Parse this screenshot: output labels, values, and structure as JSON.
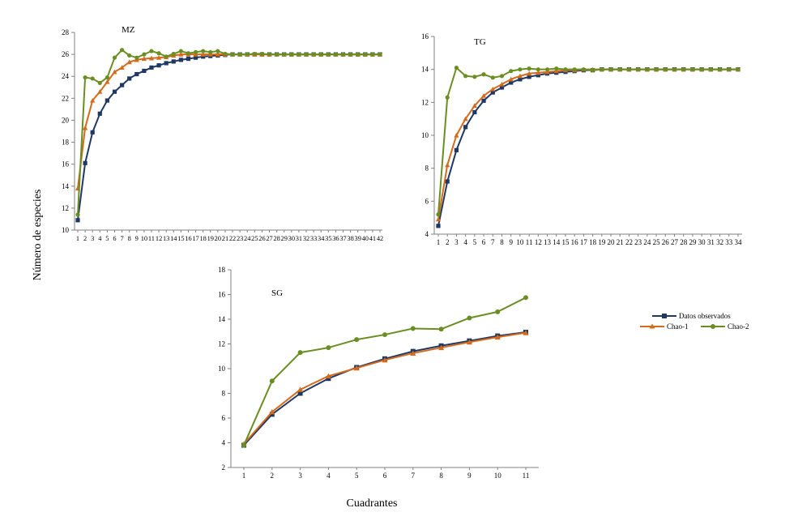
{
  "ylabel": "Número de especies",
  "xlabel": "Cuadrantes",
  "legend": [
    {
      "name": "Datos observados",
      "color": "#1f3864",
      "marker": "square"
    },
    {
      "name": "Chao-1",
      "color": "#d46a1c",
      "marker": "triangle"
    },
    {
      "name": "Chao-2",
      "color": "#6b8e23",
      "marker": "circle"
    }
  ],
  "chart_data": [
    {
      "type": "line",
      "title": "MZ",
      "ylim": [
        10,
        28
      ],
      "yticks": [
        10,
        12,
        14,
        16,
        18,
        20,
        22,
        24,
        26,
        28
      ],
      "x": [
        1,
        2,
        3,
        4,
        5,
        6,
        7,
        8,
        9,
        10,
        11,
        12,
        13,
        14,
        15,
        16,
        17,
        18,
        19,
        20,
        21,
        22,
        23,
        24,
        25,
        26,
        27,
        28,
        29,
        30,
        31,
        32,
        33,
        34,
        35,
        36,
        37,
        38,
        39,
        40,
        41,
        42
      ],
      "series": [
        {
          "name": "Datos observados",
          "values": [
            10.9,
            16.1,
            18.9,
            20.6,
            21.8,
            22.6,
            23.2,
            23.8,
            24.2,
            24.5,
            24.8,
            25.0,
            25.2,
            25.35,
            25.5,
            25.6,
            25.7,
            25.8,
            25.85,
            25.9,
            25.95,
            26,
            26,
            26,
            26,
            26,
            26,
            26,
            26,
            26,
            26,
            26,
            26,
            26,
            26,
            26,
            26,
            26,
            26,
            26,
            26,
            26
          ]
        },
        {
          "name": "Chao-1",
          "values": [
            13.8,
            19.3,
            21.8,
            22.6,
            23.5,
            24.4,
            24.8,
            25.3,
            25.5,
            25.6,
            25.65,
            25.7,
            25.75,
            25.9,
            26,
            26,
            26,
            26,
            26,
            26,
            26,
            26,
            26,
            26,
            26,
            26,
            26,
            26,
            26,
            26,
            26,
            26,
            26,
            26,
            26,
            26,
            26,
            26,
            26,
            26,
            26,
            26
          ]
        },
        {
          "name": "Chao-2",
          "values": [
            11.4,
            23.9,
            23.8,
            23.4,
            23.9,
            25.7,
            26.4,
            25.9,
            25.7,
            26.0,
            26.3,
            26.1,
            25.8,
            26.05,
            26.3,
            26.1,
            26.2,
            26.3,
            26.2,
            26.3,
            26.05,
            26.0,
            26.0,
            26.0,
            26.05,
            26.05,
            26,
            26,
            26,
            26,
            26,
            26,
            26,
            26,
            26,
            26,
            26,
            26,
            26,
            26,
            26,
            26
          ]
        }
      ]
    },
    {
      "type": "line",
      "title": "TG",
      "ylim": [
        4,
        16
      ],
      "yticks": [
        4,
        6,
        8,
        10,
        12,
        14,
        16
      ],
      "x": [
        1,
        2,
        3,
        4,
        5,
        6,
        7,
        8,
        9,
        10,
        11,
        12,
        13,
        14,
        15,
        16,
        17,
        18,
        19,
        20,
        21,
        22,
        23,
        24,
        25,
        26,
        27,
        28,
        29,
        30,
        31,
        32,
        33,
        34
      ],
      "series": [
        {
          "name": "Datos observados",
          "values": [
            4.5,
            7.2,
            9.1,
            10.5,
            11.4,
            12.1,
            12.6,
            12.9,
            13.2,
            13.4,
            13.55,
            13.65,
            13.75,
            13.8,
            13.85,
            13.9,
            13.95,
            13.95,
            14,
            14,
            14,
            14,
            14,
            14,
            14,
            14,
            14,
            14,
            14,
            14,
            14,
            14,
            14,
            14
          ]
        },
        {
          "name": "Chao-1",
          "values": [
            4.9,
            8.2,
            10.0,
            11.0,
            11.8,
            12.4,
            12.8,
            13.1,
            13.4,
            13.6,
            13.75,
            13.8,
            13.85,
            13.9,
            13.95,
            13.95,
            14,
            14,
            14,
            14,
            14,
            14,
            14,
            14,
            14,
            14,
            14,
            14,
            14,
            14,
            14,
            14,
            14,
            14
          ]
        },
        {
          "name": "Chao-2",
          "values": [
            5.2,
            12.3,
            14.1,
            13.6,
            13.55,
            13.7,
            13.5,
            13.6,
            13.9,
            14.0,
            14.05,
            14.0,
            14.0,
            14.05,
            14.0,
            14.0,
            14.0,
            13.95,
            14.0,
            14.0,
            14,
            14,
            14,
            14,
            14,
            14,
            14,
            14,
            14,
            14,
            14,
            14,
            14,
            14
          ]
        }
      ]
    },
    {
      "type": "line",
      "title": "SG",
      "ylim": [
        2,
        18
      ],
      "yticks": [
        2,
        4,
        6,
        8,
        10,
        12,
        14,
        16,
        18
      ],
      "x": [
        1,
        2,
        3,
        4,
        5,
        6,
        7,
        8,
        9,
        10,
        11
      ],
      "series": [
        {
          "name": "Datos observados",
          "values": [
            3.8,
            6.3,
            8.0,
            9.2,
            10.1,
            10.8,
            11.4,
            11.85,
            12.25,
            12.65,
            12.95
          ]
        },
        {
          "name": "Chao-1",
          "values": [
            3.9,
            6.5,
            8.3,
            9.4,
            10.05,
            10.7,
            11.25,
            11.7,
            12.15,
            12.55,
            12.9
          ]
        },
        {
          "name": "Chao-2",
          "values": [
            3.8,
            9.0,
            11.3,
            11.7,
            12.35,
            12.75,
            13.25,
            13.2,
            14.1,
            14.6,
            15.75
          ]
        }
      ]
    }
  ]
}
